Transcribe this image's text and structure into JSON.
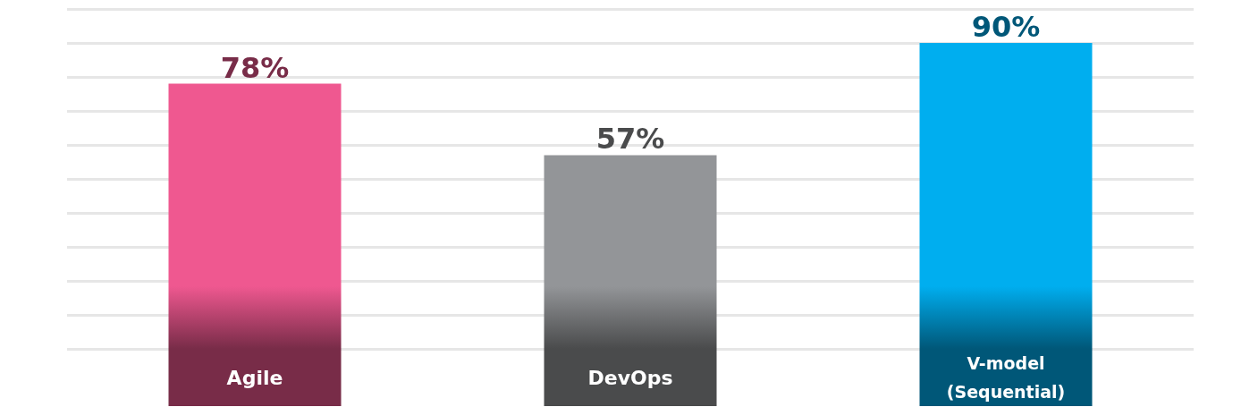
{
  "chart_data": {
    "type": "bar",
    "categories": [
      "Agile",
      "DevOps",
      "V-model\n(Sequential)"
    ],
    "values": [
      78,
      57,
      90
    ],
    "colors": [
      "#ef5890",
      "#939598",
      "#00aeef"
    ],
    "value_labels": [
      "78%",
      "57%",
      "90%"
    ],
    "ylim": [
      0,
      100
    ],
    "yticks": [
      {
        "value": 0,
        "label": null
      },
      {
        "value": 10,
        "label": null
      },
      {
        "value": 20,
        "label": null
      },
      {
        "value": 30,
        "label": null
      },
      {
        "value": 40,
        "label": null
      },
      {
        "value": 50,
        "label": null
      },
      {
        "value": 60,
        "label": null
      },
      {
        "value": 70,
        "label": null
      },
      {
        "value": 80,
        "label": null
      },
      {
        "value": 90,
        "label": null
      },
      {
        "value": 100,
        "label": null
      }
    ],
    "grid": "y",
    "tick_labels": "x"
  }
}
